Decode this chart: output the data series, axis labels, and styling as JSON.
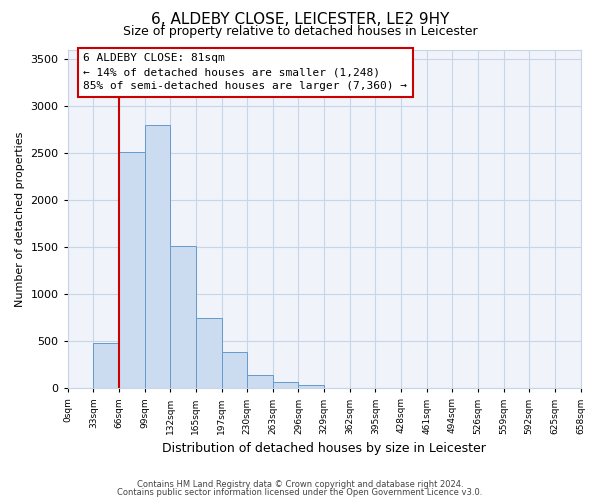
{
  "title1": "6, ALDEBY CLOSE, LEICESTER, LE2 9HY",
  "title2": "Size of property relative to detached houses in Leicester",
  "xlabel": "Distribution of detached houses by size in Leicester",
  "ylabel": "Number of detached properties",
  "bar_color": "#ccdcf0",
  "bar_edge_color": "#6699cc",
  "bar_values": [
    0,
    480,
    2510,
    2800,
    1510,
    750,
    390,
    145,
    65,
    30,
    0,
    0,
    0,
    0,
    0,
    0,
    0,
    0,
    0,
    0
  ],
  "bin_labels": [
    "0sqm",
    "33sqm",
    "66sqm",
    "99sqm",
    "132sqm",
    "165sqm",
    "197sqm",
    "230sqm",
    "263sqm",
    "296sqm",
    "329sqm",
    "362sqm",
    "395sqm",
    "428sqm",
    "461sqm",
    "494sqm",
    "526sqm",
    "559sqm",
    "592sqm",
    "625sqm",
    "658sqm"
  ],
  "ylim": [
    0,
    3600
  ],
  "yticks": [
    0,
    500,
    1000,
    1500,
    2000,
    2500,
    3000,
    3500
  ],
  "red_line_x": 2,
  "annotation_title": "6 ALDEBY CLOSE: 81sqm",
  "annotation_line1": "← 14% of detached houses are smaller (1,248)",
  "annotation_line2": "85% of semi-detached houses are larger (7,360) →",
  "footer1": "Contains HM Land Registry data © Crown copyright and database right 2024.",
  "footer2": "Contains public sector information licensed under the Open Government Licence v3.0.",
  "background_color": "#ffffff",
  "plot_bg_color": "#f0f4fa",
  "grid_color": "#c8d4e8",
  "box_color": "#cc0000"
}
